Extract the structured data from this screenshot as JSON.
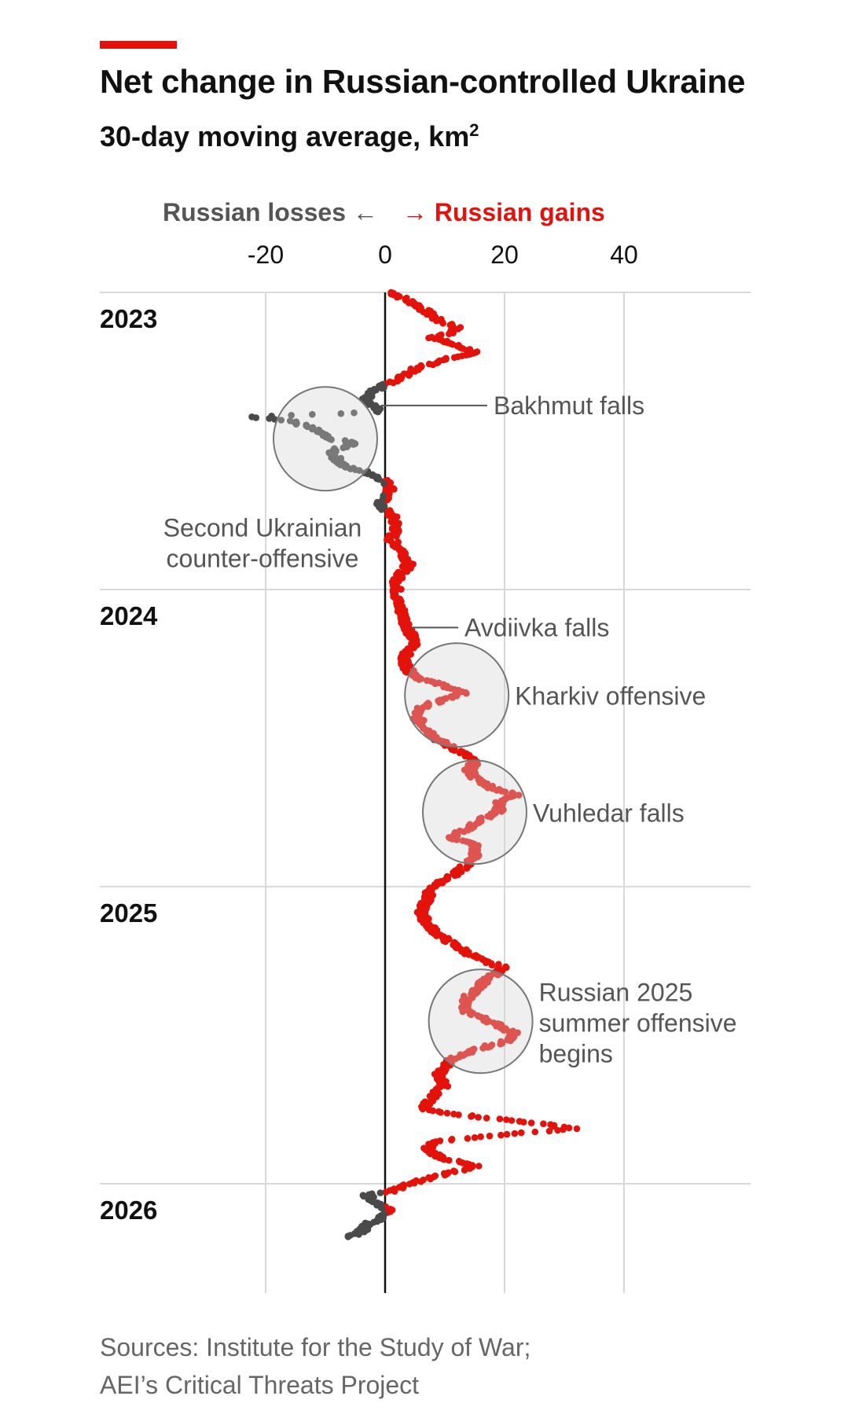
{
  "header": {
    "title": "Net change in Russian-controlled Ukraine",
    "subtitle_main": "30-day moving average, km",
    "subtitle_sup": "2"
  },
  "direction_labels": {
    "losses": "Russian losses ←",
    "gains": "→ Russian gains"
  },
  "colors": {
    "gain": "#e3120b",
    "loss": "#4a4a4a",
    "grid": "#d9d9d9",
    "accent": "#e3120b"
  },
  "chart_data": {
    "type": "scatter",
    "title": "Net change in Russian-controlled Ukraine",
    "subtitle": "30-day moving average, km²",
    "x_axis": {
      "ticks": [
        -20,
        0,
        20,
        40
      ],
      "tick_labels": [
        "-20",
        "0",
        "20",
        "40"
      ],
      "range": [
        -40,
        50
      ]
    },
    "y_axis": {
      "orientation": "time-downwards",
      "year_labels": [
        "2023",
        "2024",
        "2025",
        "2026"
      ],
      "range": [
        "2023-01-01",
        "2026-05-01"
      ]
    },
    "grid": true,
    "series": [
      {
        "color": "gain",
        "points": []
      },
      {
        "color": "loss",
        "points": []
      }
    ],
    "trace_keypoints": [
      [
        "2023-01-01",
        1
      ],
      [
        "2023-01-08",
        3
      ],
      [
        "2023-01-15",
        5
      ],
      [
        "2023-01-25",
        7
      ],
      [
        "2023-02-05",
        9
      ],
      [
        "2023-02-12",
        12
      ],
      [
        "2023-02-20",
        11
      ],
      [
        "2023-02-26",
        8
      ],
      [
        "2023-03-05",
        11
      ],
      [
        "2023-03-15",
        15
      ],
      [
        "2023-03-25",
        10
      ],
      [
        "2023-04-05",
        5
      ],
      [
        "2023-04-15",
        3
      ],
      [
        "2023-04-25",
        0
      ],
      [
        "2023-05-03",
        -2
      ],
      [
        "2023-05-12",
        -3
      ],
      [
        "2023-05-20",
        -2
      ],
      [
        "2023-05-28",
        -1
      ],
      [
        "2023-06-03",
        -22
      ],
      [
        "2023-06-08",
        -16
      ],
      [
        "2023-06-15",
        -13
      ],
      [
        "2023-06-22",
        -11
      ],
      [
        "2023-06-29",
        -10
      ],
      [
        "2023-07-05",
        -5
      ],
      [
        "2023-07-15",
        -9
      ],
      [
        "2023-07-25",
        -8
      ],
      [
        "2023-08-03",
        -7
      ],
      [
        "2023-08-10",
        -3
      ],
      [
        "2023-08-20",
        0
      ],
      [
        "2023-08-30",
        1
      ],
      [
        "2023-09-10",
        0
      ],
      [
        "2023-09-20",
        -1
      ],
      [
        "2023-10-01",
        1
      ],
      [
        "2023-10-15",
        2
      ],
      [
        "2023-11-01",
        1
      ],
      [
        "2023-11-15",
        3
      ],
      [
        "2023-12-01",
        4
      ],
      [
        "2023-12-20",
        2
      ],
      [
        "2024-01-15",
        2
      ],
      [
        "2024-02-01",
        3
      ],
      [
        "2024-02-20",
        4
      ],
      [
        "2024-03-10",
        5
      ],
      [
        "2024-03-25",
        3
      ],
      [
        "2024-04-10",
        4
      ],
      [
        "2024-04-20",
        6
      ],
      [
        "2024-05-01",
        11
      ],
      [
        "2024-05-08",
        13
      ],
      [
        "2024-05-15",
        10
      ],
      [
        "2024-05-25",
        6
      ],
      [
        "2024-06-05",
        5
      ],
      [
        "2024-06-20",
        7
      ],
      [
        "2024-07-05",
        9
      ],
      [
        "2024-07-20",
        13
      ],
      [
        "2024-08-01",
        15
      ],
      [
        "2024-08-10",
        14
      ],
      [
        "2024-08-20",
        15
      ],
      [
        "2024-09-01",
        18
      ],
      [
        "2024-09-10",
        22
      ],
      [
        "2024-09-20",
        19
      ],
      [
        "2024-10-01",
        19
      ],
      [
        "2024-10-10",
        16
      ],
      [
        "2024-10-20",
        14
      ],
      [
        "2024-11-01",
        11
      ],
      [
        "2024-11-10",
        15
      ],
      [
        "2024-11-25",
        15
      ],
      [
        "2024-12-15",
        12
      ],
      [
        "2025-01-01",
        8
      ],
      [
        "2025-01-15",
        7
      ],
      [
        "2025-02-01",
        6
      ],
      [
        "2025-02-15",
        7
      ],
      [
        "2025-03-01",
        9
      ],
      [
        "2025-03-15",
        12
      ],
      [
        "2025-04-01",
        16
      ],
      [
        "2025-04-10",
        20
      ],
      [
        "2025-04-20",
        18
      ],
      [
        "2025-05-01",
        16
      ],
      [
        "2025-05-15",
        14
      ],
      [
        "2025-06-01",
        13
      ],
      [
        "2025-06-10",
        16
      ],
      [
        "2025-06-20",
        19
      ],
      [
        "2025-07-01",
        22
      ],
      [
        "2025-07-10",
        20
      ],
      [
        "2025-07-20",
        15
      ],
      [
        "2025-08-01",
        11
      ],
      [
        "2025-08-10",
        10
      ],
      [
        "2025-08-20",
        9
      ],
      [
        "2025-09-01",
        10
      ],
      [
        "2025-09-15",
        8
      ],
      [
        "2025-10-01",
        6
      ],
      [
        "2025-10-10",
        15
      ],
      [
        "2025-10-18",
        25
      ],
      [
        "2025-10-25",
        32
      ],
      [
        "2025-11-01",
        20
      ],
      [
        "2025-11-10",
        8
      ],
      [
        "2025-11-20",
        7
      ],
      [
        "2025-12-01",
        10
      ],
      [
        "2025-12-10",
        15
      ],
      [
        "2025-12-20",
        10
      ],
      [
        "2026-01-01",
        4
      ],
      [
        "2026-01-10",
        1
      ],
      [
        "2026-01-15",
        -3
      ],
      [
        "2026-01-22",
        -2
      ],
      [
        "2026-01-30",
        0
      ],
      [
        "2026-02-05",
        1
      ],
      [
        "2026-02-12",
        -1
      ],
      [
        "2026-02-20",
        -3
      ],
      [
        "2026-03-01",
        -4
      ],
      [
        "2026-03-08",
        -6
      ]
    ],
    "annotations": [
      {
        "label_lines": [
          "Bakhmut falls"
        ],
        "date": "2023-05-20",
        "value": -2,
        "kind": "leader"
      },
      {
        "label_lines": [
          "Second Ukrainian",
          "counter-offensive"
        ],
        "date": "2023-06-30",
        "value": -10,
        "kind": "circle"
      },
      {
        "label_lines": [
          "Avdiivka falls"
        ],
        "date": "2024-02-17",
        "value": 3,
        "kind": "leader"
      },
      {
        "label_lines": [
          "Kharkiv offensive"
        ],
        "date": "2024-05-10",
        "value": 12,
        "kind": "circle"
      },
      {
        "label_lines": [
          "Vuhledar falls"
        ],
        "date": "2024-10-01",
        "value": 15,
        "kind": "circle"
      },
      {
        "label_lines": [
          "Russian 2025",
          "summer offensive",
          "begins"
        ],
        "date": "2025-06-15",
        "value": 16,
        "kind": "circle"
      }
    ],
    "sources": [
      "Sources: Institute for the Study of War;",
      "AEI’s Critical Threats Project"
    ]
  }
}
